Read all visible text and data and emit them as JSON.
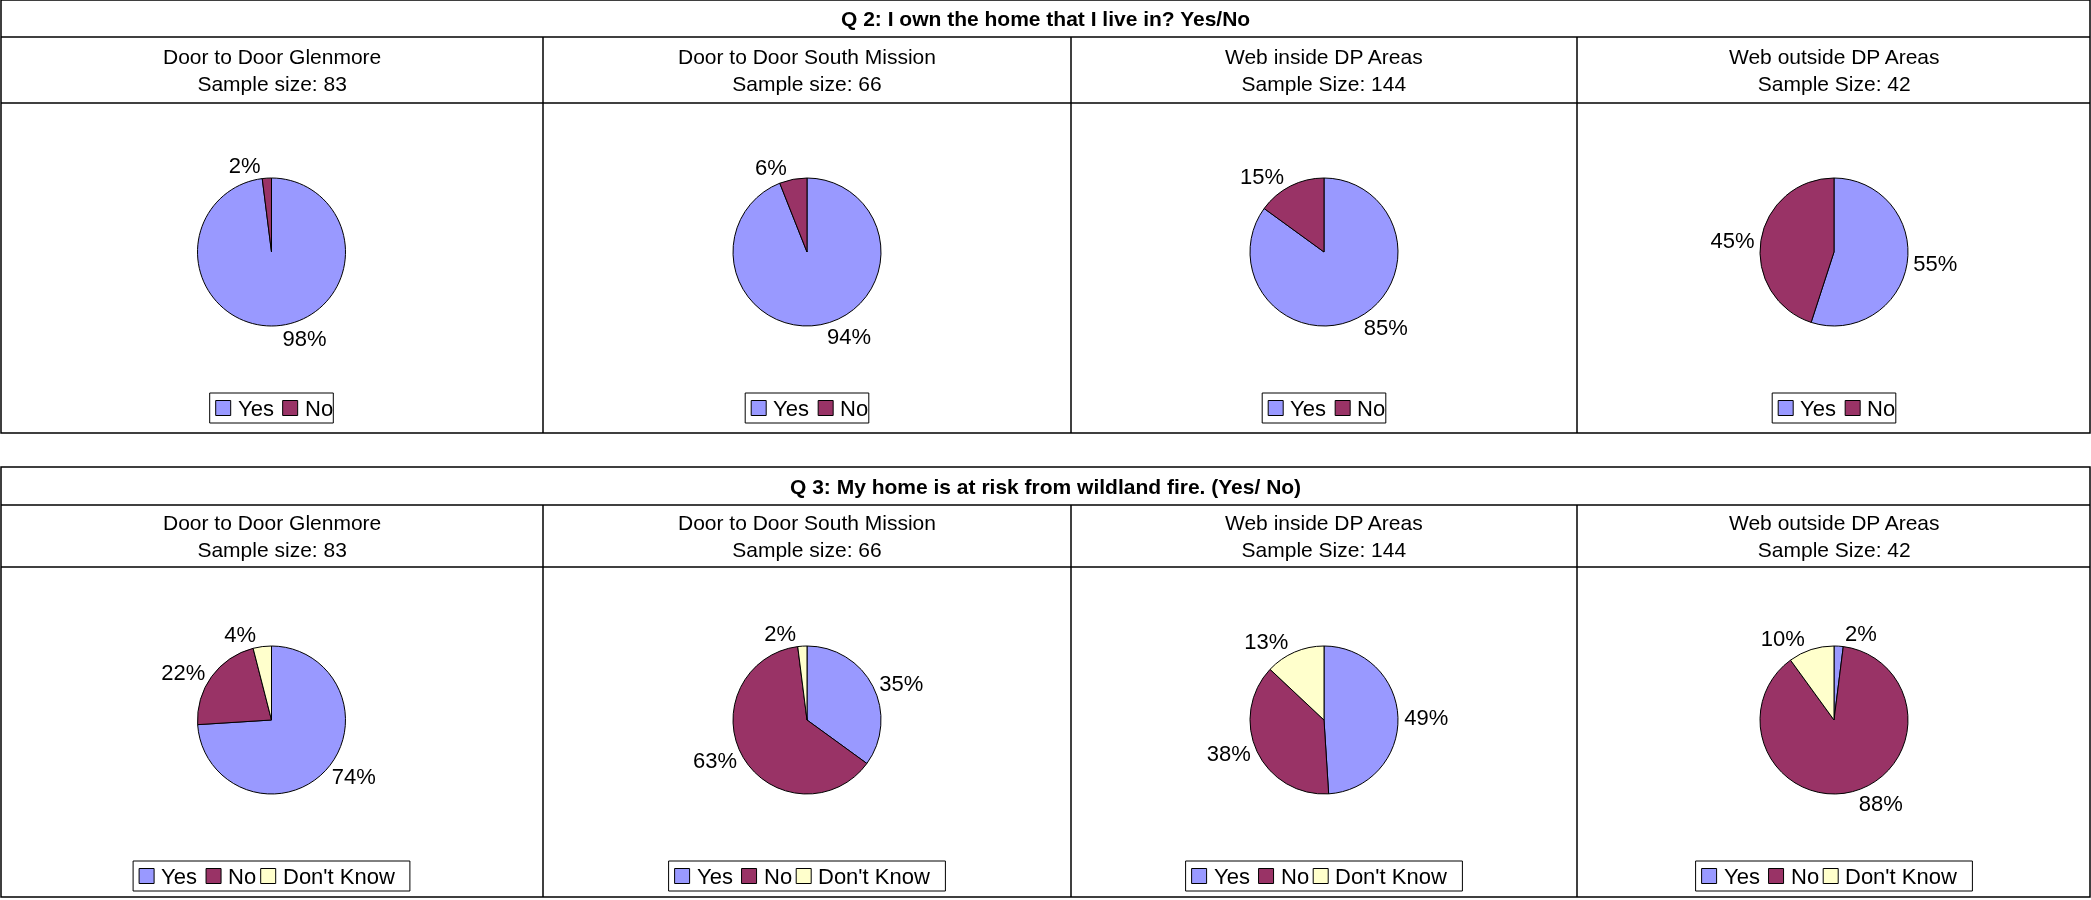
{
  "chart_data": [
    {
      "type": "pie",
      "title": "Door to Door Glenmore",
      "subtitle": "Sample size: 83",
      "annotations": [
        "Q 2: I own the home that I live in? Yes/No"
      ],
      "categories": [
        "Yes",
        "No"
      ],
      "values": [
        98,
        2
      ],
      "value_labels": [
        "98%",
        "2%"
      ],
      "colors": [
        "#9999ff",
        "#993366"
      ],
      "legend": "bottom"
    },
    {
      "type": "pie",
      "title": "Door to Door South Mission",
      "subtitle": "Sample size: 66",
      "categories": [
        "Yes",
        "No"
      ],
      "values": [
        94,
        6
      ],
      "value_labels": [
        "94%",
        "6%"
      ],
      "colors": [
        "#9999ff",
        "#993366"
      ],
      "legend": "bottom"
    },
    {
      "type": "pie",
      "title": "Web inside DP Areas",
      "subtitle": "Sample Size: 144",
      "categories": [
        "Yes",
        "No"
      ],
      "values": [
        85,
        15
      ],
      "value_labels": [
        "85%",
        "15%"
      ],
      "colors": [
        "#9999ff",
        "#993366"
      ],
      "legend": "bottom"
    },
    {
      "type": "pie",
      "title": "Web outside DP Areas",
      "subtitle": "Sample Size: 42",
      "categories": [
        "Yes",
        "No"
      ],
      "values": [
        55,
        45
      ],
      "value_labels": [
        "55%",
        "45%"
      ],
      "colors": [
        "#9999ff",
        "#993366"
      ],
      "legend": "bottom"
    },
    {
      "type": "pie",
      "title": "Door to Door Glenmore",
      "subtitle": "Sample size: 83",
      "annotations": [
        "Q 3: My home is at risk from wildland fire. (Yes/ No)"
      ],
      "categories": [
        "Yes",
        "No",
        "Don't Know"
      ],
      "values": [
        74,
        22,
        4
      ],
      "value_labels": [
        "74%",
        "22%",
        "4%"
      ],
      "colors": [
        "#9999ff",
        "#993366",
        "#ffffcc"
      ],
      "legend": "bottom"
    },
    {
      "type": "pie",
      "title": "Door to Door South Mission",
      "subtitle": "Sample size: 66",
      "categories": [
        "Yes",
        "No",
        "Don't Know"
      ],
      "values": [
        35,
        63,
        2
      ],
      "value_labels": [
        "35%",
        "63%",
        "2%"
      ],
      "colors": [
        "#9999ff",
        "#993366",
        "#ffffcc"
      ],
      "legend": "bottom"
    },
    {
      "type": "pie",
      "title": "Web inside DP Areas",
      "subtitle": "Sample Size: 144",
      "categories": [
        "Yes",
        "No",
        "Don't Know"
      ],
      "values": [
        49,
        38,
        13
      ],
      "value_labels": [
        "49%",
        "38%",
        "13%"
      ],
      "colors": [
        "#9999ff",
        "#993366",
        "#ffffcc"
      ],
      "legend": "bottom"
    },
    {
      "type": "pie",
      "title": "Web outside DP Areas",
      "subtitle": "Sample Size: 42",
      "categories": [
        "Yes",
        "No",
        "Don't Know"
      ],
      "values": [
        2,
        88,
        10
      ],
      "value_labels": [
        "2%",
        "88%",
        "10%"
      ],
      "colors": [
        "#9999ff",
        "#993366",
        "#ffffcc"
      ],
      "legend": "bottom"
    }
  ]
}
